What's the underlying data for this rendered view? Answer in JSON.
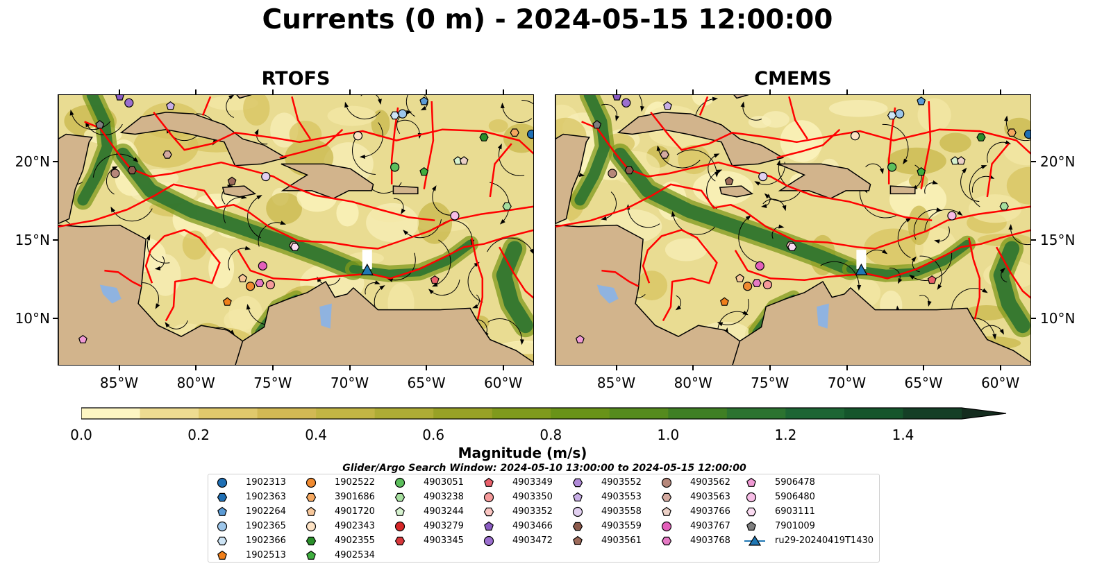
{
  "title": "Currents (0 m) - 2024-05-15 12:00:00",
  "panels": [
    {
      "title": "RTOFS",
      "glider": [
        -68.9,
        13.1
      ]
    },
    {
      "title": "CMEMS",
      "glider": [
        -69.1,
        13.1
      ]
    }
  ],
  "map": {
    "lon_range": [
      -89,
      -58
    ],
    "lat_range": [
      7,
      24.3
    ],
    "lon_ticks": [
      {
        "value": -85,
        "label": "85°W"
      },
      {
        "value": -80,
        "label": "80°W"
      },
      {
        "value": -75,
        "label": "75°W"
      },
      {
        "value": -70,
        "label": "70°W"
      },
      {
        "value": -65,
        "label": "65°W"
      },
      {
        "value": -60,
        "label": "60°W"
      }
    ],
    "lat_ticks": [
      {
        "value": 20,
        "label": "20°N"
      },
      {
        "value": 15,
        "label": "15°N"
      },
      {
        "value": 10,
        "label": "10°N"
      }
    ],
    "colors": {
      "land": "#d2b48c",
      "boundary": "#ff0000",
      "lake": "#8fb3e0",
      "streamline": "#000000"
    }
  },
  "colorbar": {
    "title": "Magnitude (m/s)",
    "min": 0.0,
    "max": 1.5,
    "step": 0.1,
    "extend": "max",
    "tick_labels": [
      "0.0",
      "0.2",
      "0.4",
      "0.6",
      "0.8",
      "1.0",
      "1.2",
      "1.4"
    ],
    "colors": [
      "#fdf6c3",
      "#eedc91",
      "#e0c96c",
      "#d2b954",
      "#c2b544",
      "#aeac35",
      "#98a126",
      "#7f9a1c",
      "#699318",
      "#558b1e",
      "#3f7f24",
      "#2c7330",
      "#1d6534",
      "#15552c",
      "#143f26",
      "#142c1e"
    ]
  },
  "search_window": "Glider/Argo Search Window: 2024-05-10 13:00:00 to 2024-05-15 12:00:00",
  "legend": [
    [
      {
        "label": "1902313",
        "marker": "circle",
        "color": "#1f6fb4"
      },
      {
        "label": "1902363",
        "marker": "hexagon",
        "color": "#1f6fb4"
      },
      {
        "label": "1902264",
        "marker": "pentagon",
        "color": "#5b9bd5"
      },
      {
        "label": "1902365",
        "marker": "circle",
        "color": "#9dc6ea"
      },
      {
        "label": "1902366",
        "marker": "hexagon",
        "color": "#cde4f5"
      },
      {
        "label": "1902513",
        "marker": "pentagon",
        "color": "#f07f1a"
      }
    ],
    [
      {
        "label": "1902522",
        "marker": "circle",
        "color": "#f08a30"
      },
      {
        "label": "3901686",
        "marker": "hexagon",
        "color": "#f5a860"
      },
      {
        "label": "4901720",
        "marker": "pentagon",
        "color": "#f7c79a"
      },
      {
        "label": "4902343",
        "marker": "circle",
        "color": "#fde2c4"
      },
      {
        "label": "4902355",
        "marker": "hexagon",
        "color": "#2a8f2a"
      },
      {
        "label": "4902534",
        "marker": "pentagon",
        "color": "#3fae3f"
      }
    ],
    [
      {
        "label": "4903051",
        "marker": "circle",
        "color": "#5cbf5c"
      },
      {
        "label": "4903238",
        "marker": "hexagon",
        "color": "#a6df9f"
      },
      {
        "label": "4903244",
        "marker": "pentagon",
        "color": "#d6f2cf"
      },
      {
        "label": "4903279",
        "marker": "circle",
        "color": "#d62728"
      },
      {
        "label": "4903345",
        "marker": "hexagon",
        "color": "#d8383b"
      }
    ],
    [
      {
        "label": "4903349",
        "marker": "pentagon",
        "color": "#e9606a"
      },
      {
        "label": "4903350",
        "marker": "circle",
        "color": "#f59a9a"
      },
      {
        "label": "4903352",
        "marker": "hexagon",
        "color": "#fbc6c2"
      },
      {
        "label": "4903466",
        "marker": "pentagon",
        "color": "#8a5cc2"
      },
      {
        "label": "4903472",
        "marker": "circle",
        "color": "#9b6fcf"
      }
    ],
    [
      {
        "label": "4903552",
        "marker": "hexagon",
        "color": "#b08ad8"
      },
      {
        "label": "4903553",
        "marker": "pentagon",
        "color": "#c8aee6"
      },
      {
        "label": "4903558",
        "marker": "circle",
        "color": "#e2d0f1"
      },
      {
        "label": "4903559",
        "marker": "hexagon",
        "color": "#8c5a4c"
      },
      {
        "label": "4903561",
        "marker": "pentagon",
        "color": "#9d6b5b"
      }
    ],
    [
      {
        "label": "4903562",
        "marker": "circle",
        "color": "#b6877a"
      },
      {
        "label": "4903563",
        "marker": "hexagon",
        "color": "#d4aaa0"
      },
      {
        "label": "4903766",
        "marker": "pentagon",
        "color": "#ecd0c6"
      },
      {
        "label": "4903767",
        "marker": "circle",
        "color": "#e35fba"
      },
      {
        "label": "4903768",
        "marker": "hexagon",
        "color": "#e579c4"
      }
    ],
    [
      {
        "label": "5906478",
        "marker": "pentagon",
        "color": "#f09ad4"
      },
      {
        "label": "5906480",
        "marker": "circle",
        "color": "#f7bde6"
      },
      {
        "label": "6903111",
        "marker": "hexagon",
        "color": "#fbdcf2"
      },
      {
        "label": "7901009",
        "marker": "pentagon",
        "color": "#7f7f7f"
      },
      {
        "label": "ru29-20240419T1430",
        "marker": "triangle-line",
        "color": "#1f77b4"
      }
    ]
  ],
  "markers": [
    {
      "id": "1902313",
      "lon": -58.2,
      "lat": 21.8
    },
    {
      "id": "1902264",
      "lon": -65.2,
      "lat": 23.9
    },
    {
      "id": "1902365",
      "lon": -66.6,
      "lat": 23.1
    },
    {
      "id": "1902366",
      "lon": -67.1,
      "lat": 23.0
    },
    {
      "id": "1902522",
      "lon": -76.5,
      "lat": 12.1
    },
    {
      "id": "1902513",
      "lon": -78.0,
      "lat": 11.1
    },
    {
      "id": "3901686",
      "lon": -59.3,
      "lat": 21.9
    },
    {
      "id": "4901720",
      "lon": -77.0,
      "lat": 12.6
    },
    {
      "id": "4902343",
      "lon": -69.5,
      "lat": 21.7
    },
    {
      "id": "4902355",
      "lon": -61.3,
      "lat": 21.6
    },
    {
      "id": "4902534",
      "lon": -65.2,
      "lat": 19.4
    },
    {
      "id": "4903051",
      "lon": -67.1,
      "lat": 19.7
    },
    {
      "id": "4903238",
      "lon": -59.8,
      "lat": 17.2
    },
    {
      "id": "4903244",
      "lon": -63.0,
      "lat": 20.1
    },
    {
      "id": "4903349",
      "lon": -64.5,
      "lat": 12.5
    },
    {
      "id": "4903350",
      "lon": -75.2,
      "lat": 12.2
    },
    {
      "id": "4903352",
      "lon": -73.7,
      "lat": 14.7
    },
    {
      "id": "4903466",
      "lon": -85.0,
      "lat": 24.2
    },
    {
      "id": "4903472",
      "lon": -84.4,
      "lat": 23.8
    },
    {
      "id": "4903553",
      "lon": -81.7,
      "lat": 23.6
    },
    {
      "id": "4903558",
      "lon": -75.5,
      "lat": 19.1
    },
    {
      "id": "4903559",
      "lon": -84.2,
      "lat": 19.5
    },
    {
      "id": "4903561",
      "lon": -77.7,
      "lat": 18.8
    },
    {
      "id": "4903562",
      "lon": -85.3,
      "lat": 19.3
    },
    {
      "id": "4903563",
      "lon": -81.9,
      "lat": 20.5
    },
    {
      "id": "4903766",
      "lon": -62.6,
      "lat": 20.1
    },
    {
      "id": "4903767",
      "lon": -75.7,
      "lat": 13.4
    },
    {
      "id": "4903768",
      "lon": -75.9,
      "lat": 12.3
    },
    {
      "id": "5906480",
      "lon": -63.2,
      "lat": 16.6
    },
    {
      "id": "6903111",
      "lon": -73.6,
      "lat": 14.6
    },
    {
      "id": "7901009",
      "lon": -86.3,
      "lat": 22.4
    },
    {
      "id": "5906478",
      "lon": -87.4,
      "lat": 8.7
    }
  ]
}
